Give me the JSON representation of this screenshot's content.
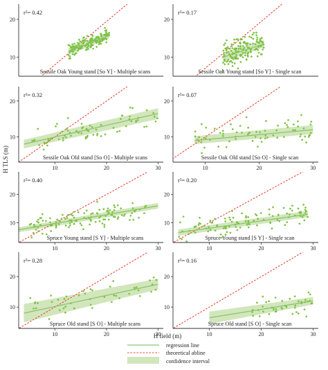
{
  "figure": {
    "xlabel": "H field (m)",
    "ylabel": "H TLS (m)"
  },
  "legend": {
    "regression": "regression line",
    "abline": "theoretical abline",
    "ci": "confidence interval"
  },
  "colors": {
    "points": "#7dc242",
    "regression": "#8cc36c",
    "ci_band": "#d2e6bc",
    "abline": "#e8412e",
    "axis": "#333333"
  },
  "chart_data": [
    {
      "type": "scatter",
      "title": "Sessile Oak Young stand [So Y] - Multiple scans",
      "r2_label": "r²= 0.42",
      "xlim": [
        0,
        32
      ],
      "ylim": [
        5,
        24
      ],
      "xticks": [],
      "yticks": [
        10,
        20
      ],
      "fit": {
        "x0": 11,
        "x1": 20,
        "y0": 11.5,
        "y1": 15.8,
        "ci_lo": [
          10.6,
          15.0
        ],
        "ci_hi": [
          12.4,
          16.6
        ]
      },
      "abline": [
        [
          0,
          0
        ],
        [
          32,
          32
        ]
      ],
      "points": {
        "x_range": [
          11,
          20
        ],
        "y_range": [
          9,
          18
        ],
        "n": 160,
        "slope": 0.5,
        "y_at_start": 11.5,
        "spread": 1.5
      }
    },
    {
      "type": "scatter",
      "title": "Sessile Oak Young stand [So Y] - Single scan",
      "r2_label": "r²= 0.17",
      "xlim": [
        0,
        32
      ],
      "ylim": [
        5,
        24
      ],
      "xticks": [],
      "yticks": [
        10,
        20
      ],
      "fit": {
        "x0": 11,
        "x1": 20,
        "y0": 10,
        "y1": 13.5,
        "ci_lo": [
          8.8,
          12.6
        ],
        "ci_hi": [
          11.2,
          14.5
        ]
      },
      "abline": [
        [
          0,
          0
        ],
        [
          32,
          32
        ]
      ],
      "points": {
        "x_range": [
          11,
          20
        ],
        "y_range": [
          4,
          18
        ],
        "n": 150,
        "slope": 0.4,
        "y_at_start": 10,
        "spread": 3
      }
    },
    {
      "type": "scatter",
      "title": "Sessile Oak Old stand [So O] - Multiple scans",
      "r2_label": "r²= 0.32",
      "xlim": [
        3,
        31
      ],
      "ylim": [
        3,
        24
      ],
      "xticks": [
        10,
        20,
        30
      ],
      "yticks": [
        10,
        20
      ],
      "fit": {
        "x0": 4,
        "x1": 30,
        "y0": 8,
        "y1": 16.5,
        "ci_lo": [
          6.8,
          15.0
        ],
        "ci_hi": [
          9.2,
          18.0
        ]
      },
      "abline": [
        [
          0,
          0
        ],
        [
          32,
          32
        ]
      ],
      "points": {
        "x_range": [
          5,
          30
        ],
        "y_range": [
          4,
          22
        ],
        "n": 70,
        "slope": 0.3,
        "y_at_start": 8.5,
        "spread": 3
      }
    },
    {
      "type": "scatter",
      "title": "Sessile Oak Old stand [So O] - Single scan",
      "r2_label": "r²= 0.07",
      "xlim": [
        4,
        31
      ],
      "ylim": [
        3,
        24
      ],
      "xticks": [
        10,
        20,
        30
      ],
      "yticks": [
        10,
        20
      ],
      "fit": {
        "x0": 8,
        "x1": 30,
        "y0": 9,
        "y1": 12,
        "ci_lo": [
          8.0,
          10.8
        ],
        "ci_hi": [
          10.2,
          13.3
        ]
      },
      "abline": [
        [
          0,
          0
        ],
        [
          32,
          32
        ]
      ],
      "points": {
        "x_range": [
          8,
          30
        ],
        "y_range": [
          4,
          19
        ],
        "n": 70,
        "slope": 0.15,
        "y_at_start": 9,
        "spread": 3
      }
    },
    {
      "type": "scatter",
      "title": "Spruce Young stand [S Y] - Multiple scans",
      "r2_label": "r²= 0.40",
      "xlim": [
        3,
        31
      ],
      "ylim": [
        3,
        28
      ],
      "xticks": [
        10,
        20,
        30
      ],
      "yticks": [
        10,
        20
      ],
      "fit": {
        "x0": 3,
        "x1": 30,
        "y0": 7.5,
        "y1": 16,
        "ci_lo": [
          6.6,
          15.0
        ],
        "ci_hi": [
          8.4,
          17.0
        ]
      },
      "abline": [
        [
          0,
          0
        ],
        [
          32,
          32
        ]
      ],
      "points": {
        "x_range": [
          5,
          28
        ],
        "y_range": [
          4,
          22
        ],
        "n": 120,
        "slope": 0.32,
        "y_at_start": 8,
        "spread": 2.8
      }
    },
    {
      "type": "scatter",
      "title": "Spruce Young stand [S Y] - Single scan",
      "r2_label": "r²= 0.20",
      "xlim": [
        3,
        31
      ],
      "ylim": [
        3,
        28
      ],
      "xticks": [
        10,
        20,
        30
      ],
      "yticks": [
        10,
        20
      ],
      "fit": {
        "x0": 4,
        "x1": 29,
        "y0": 6.5,
        "y1": 13,
        "ci_lo": [
          5.4,
          12.0
        ],
        "ci_hi": [
          7.6,
          14.2
        ]
      },
      "abline": [
        [
          0,
          0
        ],
        [
          32,
          32
        ]
      ],
      "points": {
        "x_range": [
          4,
          29
        ],
        "y_range": [
          3,
          21
        ],
        "n": 110,
        "slope": 0.26,
        "y_at_start": 7,
        "spread": 3
      }
    },
    {
      "type": "scatter",
      "title": "Spruce Old stand [S O] - Multiple scans",
      "r2_label": "r²= 0.28",
      "xlim": [
        3,
        31
      ],
      "ylim": [
        3,
        28
      ],
      "xticks": [
        10,
        20,
        30
      ],
      "yticks": [
        10,
        20
      ],
      "fit": {
        "x0": 4,
        "x1": 30,
        "y0": 8,
        "y1": 17.5,
        "ci_lo": [
          5.0,
          15.8
        ],
        "ci_hi": [
          11.0,
          19.3
        ]
      },
      "abline": [
        [
          0,
          0
        ],
        [
          32,
          32
        ]
      ],
      "points": {
        "x_range": [
          5,
          30
        ],
        "y_range": [
          4,
          25
        ],
        "n": 45,
        "slope": 0.36,
        "y_at_start": 9,
        "spread": 3
      }
    },
    {
      "type": "scatter",
      "title": "Spruce Old stand [S O] - Single scan",
      "r2_label": "r²= 0.16",
      "xlim": [
        3,
        31
      ],
      "ylim": [
        3,
        28
      ],
      "xticks": [
        10,
        20,
        30
      ],
      "yticks": [
        10,
        20
      ],
      "fit": {
        "x0": 10,
        "x1": 30,
        "y0": 6.5,
        "y1": 12,
        "ci_lo": [
          4.5,
          10.8
        ],
        "ci_hi": [
          8.5,
          13.3
        ]
      },
      "abline": [
        [
          0,
          0
        ],
        [
          32,
          32
        ]
      ],
      "points": {
        "x_range": [
          18,
          30
        ],
        "y_range": [
          5,
          20
        ],
        "n": 45,
        "slope": 0.27,
        "y_at_start": 8.6,
        "spread": 2.6
      }
    }
  ]
}
